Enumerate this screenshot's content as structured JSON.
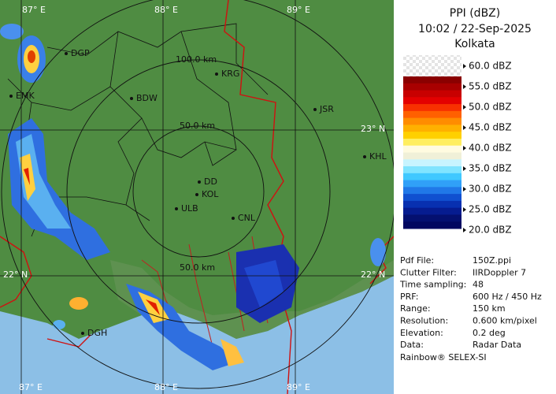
{
  "panel": {
    "title": "PPI (dBZ)",
    "datetime": "10:02 / 22-Sep-2025",
    "site": "Kolkata",
    "legend": [
      "60.0 dBZ",
      "55.0 dBZ",
      "50.0 dBZ",
      "45.0 dBZ",
      "40.0 dBZ",
      "35.0 dBZ",
      "30.0 dBZ",
      "25.0 dBZ",
      "20.0 dBZ"
    ],
    "info": [
      [
        "Pdf File:",
        "150Z.ppi"
      ],
      [
        "Clutter Filter:",
        "IIRDoppler 7"
      ],
      [
        "Time sampling:",
        "48"
      ],
      [
        "PRF:",
        "600 Hz / 450 Hz"
      ],
      [
        "Range:",
        "150 km"
      ],
      [
        "Resolution:",
        "0.600 km/pixel"
      ],
      [
        "Elevation:",
        "0.2 deg"
      ],
      [
        "Data:",
        "Radar Data"
      ]
    ],
    "footer": "Rainbow® SELEX-SI"
  },
  "map": {
    "grid_labels": [
      "87° E",
      "88° E",
      "89° E",
      "23° N",
      "22° N",
      "22° N",
      "87° E",
      "88° E",
      "89° E"
    ],
    "range_labels": [
      "100.0 km",
      "50.0 km",
      "50.0 km"
    ],
    "cities": [
      "DGP",
      "EMK",
      "BDW",
      "KRG",
      "JSR",
      "KHL",
      "DD",
      "KOL",
      "ULB",
      "CNL",
      "DGH"
    ]
  }
}
